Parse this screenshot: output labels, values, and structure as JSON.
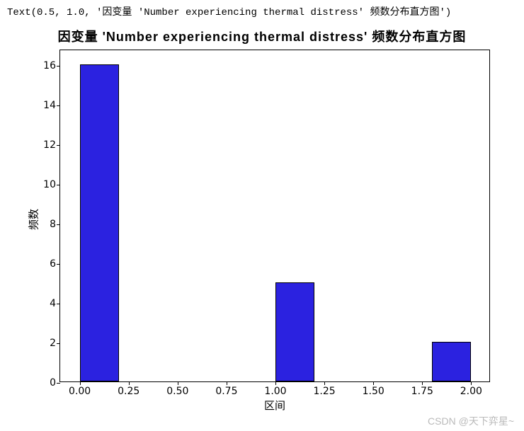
{
  "code_output": "Text(0.5, 1.0, '因变量 'Number experiencing thermal distress' 频数分布直方图')",
  "chart": {
    "type": "histogram",
    "title": "因变量 'Number experiencing thermal distress' 频数分布直方图",
    "title_fontsize": 18,
    "xlabel": "区间",
    "ylabel": "频数",
    "label_fontsize": 15,
    "xlim": [
      -0.1,
      2.1
    ],
    "ylim": [
      0,
      16.8
    ],
    "xticks": [
      0.0,
      0.25,
      0.5,
      0.75,
      1.0,
      1.25,
      1.5,
      1.75,
      2.0
    ],
    "xtick_labels": [
      "0.00",
      "0.25",
      "0.50",
      "0.75",
      "1.00",
      "1.25",
      "1.50",
      "1.75",
      "2.00"
    ],
    "yticks": [
      0,
      2,
      4,
      6,
      8,
      10,
      12,
      14,
      16
    ],
    "ytick_labels": [
      "0",
      "2",
      "4",
      "6",
      "8",
      "10",
      "12",
      "14",
      "16"
    ],
    "bars": [
      {
        "x_start": 0.0,
        "x_end": 0.2,
        "height": 16
      },
      {
        "x_start": 1.0,
        "x_end": 1.2,
        "height": 5
      },
      {
        "x_start": 1.8,
        "x_end": 2.0,
        "height": 2
      }
    ],
    "bar_fill": "#2b22e0",
    "bar_edge": "#000000",
    "background_color": "#ffffff",
    "axis_color": "#000000",
    "tick_fontsize": 14
  },
  "watermark": "CSDN @天下弈星~"
}
